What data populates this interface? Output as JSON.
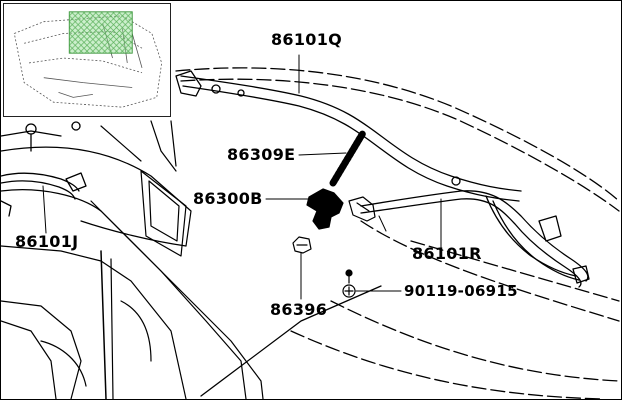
{
  "parts": {
    "p86101Q": "86101Q",
    "p86309E": "86309E",
    "p86300B": "86300B",
    "p86101J": "86101J",
    "p86101R": "86101R",
    "p86396": "86396",
    "p90119": "90119-06915"
  },
  "colors": {
    "line": "#000000",
    "highlight_fill": "#8fdc8f",
    "highlight_stroke": "#2e8b2e"
  },
  "icons": {
    "locator_thumbnail": "vehicle-locator-thumbnail"
  }
}
